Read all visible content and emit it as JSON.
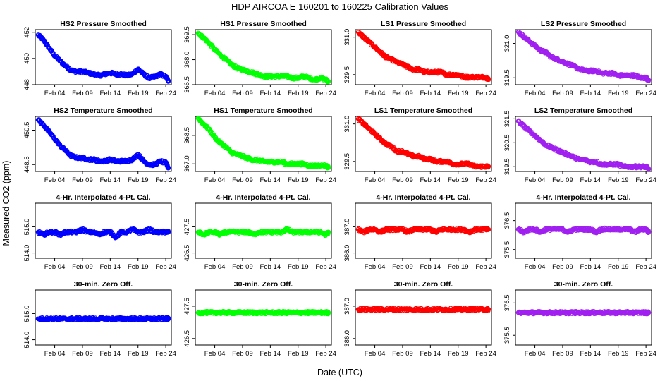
{
  "figure": {
    "title": "HDP    AIRCOA E    160201 to 160225    Calibration Values",
    "xlabel": "Date (UTC)",
    "ylabel": "Measured CO2 (ppm)"
  },
  "x_tick_labels": [
    "Feb 04",
    "Feb 09",
    "Feb 14",
    "Feb 19",
    "Feb 24"
  ],
  "x_tick_days": [
    4,
    9,
    14,
    19,
    24
  ],
  "x_range_days": [
    0.5,
    25
  ],
  "series_colors": {
    "HS2": "#0000ff",
    "HS1": "#00ff00",
    "LS1": "#ff0000",
    "LS2": "#a020f0"
  },
  "chart_data": [
    {
      "type": "scatter",
      "row": 0,
      "col": 0,
      "title": "HS2 Pressure Smoothed",
      "series": "HS2",
      "ylim": [
        448,
        452.2
      ],
      "yticks": [
        "448",
        "450",
        "452"
      ],
      "x": [
        1,
        2,
        3,
        4,
        5,
        6,
        7,
        8,
        9,
        10,
        11,
        12,
        13,
        14,
        15,
        16,
        17,
        18,
        19,
        20,
        21,
        22,
        23,
        24,
        24.5
      ],
      "y": [
        451.8,
        451.4,
        450.8,
        450.2,
        449.8,
        449.4,
        449.1,
        449.0,
        449.0,
        448.9,
        448.8,
        448.7,
        448.8,
        448.9,
        448.8,
        448.8,
        448.7,
        448.8,
        449.2,
        448.8,
        448.5,
        448.6,
        448.8,
        448.6,
        448.3
      ]
    },
    {
      "type": "scatter",
      "row": 0,
      "col": 1,
      "title": "HS1 Pressure Smoothed",
      "series": "HS1",
      "ylim": [
        366.5,
        369.8
      ],
      "yticks": [
        "366.5",
        "368.0",
        "369.5"
      ],
      "x": [
        1,
        2,
        3,
        4,
        5,
        6,
        7,
        8,
        9,
        10,
        11,
        12,
        13,
        14,
        15,
        16,
        17,
        18,
        19,
        20,
        21,
        22,
        23,
        24,
        24.5
      ],
      "y": [
        369.6,
        369.3,
        369.0,
        368.6,
        368.3,
        368.0,
        367.7,
        367.5,
        367.4,
        367.3,
        367.2,
        367.1,
        367.0,
        367.0,
        367.0,
        367.0,
        367.0,
        366.9,
        366.9,
        367.0,
        366.9,
        366.8,
        366.9,
        366.8,
        366.7
      ]
    },
    {
      "type": "scatter",
      "row": 0,
      "col": 2,
      "title": "LS1 Pressure Smoothed",
      "series": "LS1",
      "ylim": [
        329.1,
        331.3
      ],
      "yticks": [
        "329.5",
        "331.0"
      ],
      "x": [
        1,
        2,
        3,
        4,
        5,
        6,
        7,
        8,
        9,
        10,
        11,
        12,
        13,
        14,
        15,
        16,
        17,
        18,
        19,
        20,
        21,
        22,
        23,
        24,
        24.5
      ],
      "y": [
        331.2,
        331.0,
        330.8,
        330.6,
        330.4,
        330.2,
        330.1,
        330.0,
        329.9,
        329.8,
        329.7,
        329.7,
        329.6,
        329.6,
        329.6,
        329.6,
        329.5,
        329.5,
        329.5,
        329.4,
        329.4,
        329.4,
        329.4,
        329.4,
        329.3
      ]
    },
    {
      "type": "scatter",
      "row": 0,
      "col": 3,
      "title": "LS2 Pressure Smoothed",
      "series": "LS2",
      "ylim": [
        319.2,
        321.6
      ],
      "yticks": [
        "319.5",
        "321.0"
      ],
      "x": [
        1,
        2,
        3,
        4,
        5,
        6,
        7,
        8,
        9,
        10,
        11,
        12,
        13,
        14,
        15,
        16,
        17,
        18,
        19,
        20,
        21,
        22,
        23,
        24,
        24.5
      ],
      "y": [
        321.5,
        321.3,
        321.1,
        320.9,
        320.7,
        320.6,
        320.4,
        320.3,
        320.2,
        320.1,
        320.0,
        319.9,
        319.8,
        319.8,
        319.8,
        319.7,
        319.7,
        319.7,
        319.6,
        319.6,
        319.6,
        319.6,
        319.5,
        319.5,
        319.4
      ]
    },
    {
      "type": "scatter",
      "row": 1,
      "col": 0,
      "title": "HS2 Temperature Smoothed",
      "series": "HS2",
      "ylim": [
        448.1,
        451.3
      ],
      "yticks": [
        "448.5",
        "450.5"
      ],
      "x": [
        1,
        2,
        3,
        4,
        5,
        6,
        7,
        8,
        9,
        10,
        11,
        12,
        13,
        14,
        15,
        16,
        17,
        18,
        19,
        20,
        21,
        22,
        23,
        24,
        24.5
      ],
      "y": [
        451.1,
        450.8,
        450.4,
        450.0,
        449.6,
        449.3,
        449.0,
        448.9,
        448.9,
        448.8,
        448.8,
        448.7,
        448.7,
        448.8,
        448.7,
        448.7,
        448.7,
        448.8,
        449.1,
        448.7,
        448.5,
        448.5,
        448.7,
        448.6,
        448.3
      ]
    },
    {
      "type": "scatter",
      "row": 1,
      "col": 1,
      "title": "HS1 Temperature Smoothed",
      "series": "HS1",
      "ylim": [
        366.6,
        369.5
      ],
      "yticks": [
        "367.0",
        "368.5"
      ],
      "x": [
        1,
        2,
        3,
        4,
        5,
        6,
        7,
        8,
        9,
        10,
        11,
        12,
        13,
        14,
        15,
        16,
        17,
        18,
        19,
        20,
        21,
        22,
        23,
        24,
        24.5
      ],
      "y": [
        369.4,
        369.1,
        368.8,
        368.4,
        368.1,
        367.9,
        367.6,
        367.5,
        367.4,
        367.3,
        367.2,
        367.2,
        367.1,
        367.1,
        367.1,
        367.1,
        367.0,
        367.0,
        367.0,
        367.0,
        366.9,
        366.9,
        366.9,
        366.9,
        366.8
      ]
    },
    {
      "type": "scatter",
      "row": 1,
      "col": 2,
      "title": "LS1 Temperature Smoothed",
      "series": "LS1",
      "ylim": [
        329.1,
        331.3
      ],
      "yticks": [
        "329.5",
        "331.0"
      ],
      "x": [
        1,
        2,
        3,
        4,
        5,
        6,
        7,
        8,
        9,
        10,
        11,
        12,
        13,
        14,
        15,
        16,
        17,
        18,
        19,
        20,
        21,
        22,
        23,
        24,
        24.5
      ],
      "y": [
        331.2,
        331.0,
        330.8,
        330.6,
        330.4,
        330.2,
        330.1,
        329.9,
        329.9,
        329.8,
        329.7,
        329.7,
        329.6,
        329.6,
        329.5,
        329.5,
        329.5,
        329.4,
        329.4,
        329.4,
        329.4,
        329.3,
        329.3,
        329.3,
        329.3
      ]
    },
    {
      "type": "scatter",
      "row": 1,
      "col": 3,
      "title": "LS2 Temperature Smoothed",
      "series": "LS2",
      "ylim": [
        319.3,
        321.6
      ],
      "yticks": [
        "319.5",
        "320.5",
        "321.5"
      ],
      "x": [
        1,
        2,
        3,
        4,
        5,
        6,
        7,
        8,
        9,
        10,
        11,
        12,
        13,
        14,
        15,
        16,
        17,
        18,
        19,
        20,
        21,
        22,
        23,
        24,
        24.5
      ],
      "y": [
        321.4,
        321.2,
        321.0,
        320.8,
        320.6,
        320.4,
        320.3,
        320.2,
        320.1,
        320.0,
        319.9,
        319.8,
        319.8,
        319.7,
        319.7,
        319.6,
        319.6,
        319.6,
        319.6,
        319.5,
        319.5,
        319.5,
        319.5,
        319.5,
        319.4
      ]
    },
    {
      "type": "scatter",
      "row": 2,
      "col": 0,
      "title": "4-Hr. Interpolated 4-Pt. Cal.",
      "series": "HS2",
      "ylim": [
        513.8,
        515.9
      ],
      "yticks": [
        "514.0",
        "515.0"
      ],
      "x": [
        1,
        2,
        3,
        4,
        5,
        6,
        7,
        8,
        9,
        10,
        11,
        12,
        13,
        14,
        15,
        16,
        17,
        18,
        19,
        20,
        21,
        22,
        23,
        24,
        24.5
      ],
      "y": [
        514.8,
        514.7,
        514.8,
        514.8,
        514.7,
        514.8,
        514.8,
        514.8,
        514.9,
        514.8,
        514.8,
        514.7,
        514.8,
        514.8,
        514.6,
        514.8,
        514.8,
        514.9,
        514.8,
        514.8,
        514.9,
        514.8,
        514.8,
        514.8,
        514.8
      ]
    },
    {
      "type": "scatter",
      "row": 2,
      "col": 1,
      "title": "4-Hr. Interpolated 4-Pt. Cal.",
      "series": "HS1",
      "ylim": [
        426.3,
        428.4
      ],
      "yticks": [
        "426.5",
        "427.5"
      ],
      "x": [
        1,
        2,
        3,
        4,
        5,
        6,
        7,
        8,
        9,
        10,
        11,
        12,
        13,
        14,
        15,
        16,
        17,
        18,
        19,
        20,
        21,
        22,
        23,
        24,
        24.5
      ],
      "y": [
        427.3,
        427.2,
        427.3,
        427.3,
        427.2,
        427.3,
        427.3,
        427.3,
        427.3,
        427.3,
        427.2,
        427.3,
        427.3,
        427.3,
        427.3,
        427.3,
        427.4,
        427.3,
        427.3,
        427.3,
        427.3,
        427.3,
        427.3,
        427.2,
        427.3
      ]
    },
    {
      "type": "scatter",
      "row": 2,
      "col": 2,
      "title": "4-Hr. Interpolated 4-Pt. Cal.",
      "series": "LS1",
      "ylim": [
        385.8,
        387.9
      ],
      "yticks": [
        "386.0",
        "387.0"
      ],
      "x": [
        1,
        2,
        3,
        4,
        5,
        6,
        7,
        8,
        9,
        10,
        11,
        12,
        13,
        14,
        15,
        16,
        17,
        18,
        19,
        20,
        21,
        22,
        23,
        24,
        24.5
      ],
      "y": [
        386.9,
        386.8,
        386.9,
        386.9,
        386.8,
        386.9,
        386.9,
        386.9,
        386.9,
        386.8,
        386.9,
        386.9,
        386.9,
        386.9,
        386.8,
        386.9,
        386.9,
        386.9,
        386.9,
        386.9,
        386.8,
        386.9,
        386.9,
        386.9,
        386.9
      ]
    },
    {
      "type": "scatter",
      "row": 2,
      "col": 3,
      "title": "4-Hr. Interpolated 4-Pt. Cal.",
      "series": "LS2",
      "ylim": [
        375.2,
        377.1
      ],
      "yticks": [
        "375.5",
        "376.5"
      ],
      "x": [
        1,
        2,
        3,
        4,
        5,
        6,
        7,
        8,
        9,
        10,
        11,
        12,
        13,
        14,
        15,
        16,
        17,
        18,
        19,
        20,
        21,
        22,
        23,
        24,
        24.5
      ],
      "y": [
        376.2,
        376.1,
        376.2,
        376.2,
        376.1,
        376.2,
        376.2,
        376.2,
        376.2,
        376.1,
        376.2,
        376.2,
        376.2,
        376.2,
        376.1,
        376.2,
        376.2,
        376.2,
        376.2,
        376.2,
        376.2,
        376.1,
        376.2,
        376.2,
        376.1
      ]
    },
    {
      "type": "scatter",
      "row": 3,
      "col": 0,
      "title": "30-min. Zero Off.",
      "series": "HS2",
      "ylim": [
        513.8,
        515.9
      ],
      "yticks": [
        "514.0",
        "515.0"
      ],
      "x": [
        1,
        2,
        3,
        4,
        5,
        6,
        7,
        8,
        9,
        10,
        11,
        12,
        13,
        14,
        15,
        16,
        17,
        18,
        19,
        20,
        21,
        22,
        23,
        24,
        24.5
      ],
      "y": [
        514.8,
        514.8,
        514.8,
        514.8,
        514.8,
        514.8,
        514.8,
        514.8,
        514.8,
        514.8,
        514.8,
        514.8,
        514.8,
        514.8,
        514.8,
        514.8,
        514.8,
        514.8,
        514.8,
        514.8,
        514.8,
        514.8,
        514.8,
        514.8,
        514.8
      ]
    },
    {
      "type": "scatter",
      "row": 3,
      "col": 1,
      "title": "30-min. Zero Off.",
      "series": "HS1",
      "ylim": [
        426.3,
        428.0
      ],
      "yticks": [
        "426.5",
        "427.5"
      ],
      "x": [
        1,
        2,
        3,
        4,
        5,
        6,
        7,
        8,
        9,
        10,
        11,
        12,
        13,
        14,
        15,
        16,
        17,
        18,
        19,
        20,
        21,
        22,
        23,
        24,
        24.5
      ],
      "y": [
        427.3,
        427.3,
        427.3,
        427.3,
        427.3,
        427.3,
        427.3,
        427.3,
        427.3,
        427.3,
        427.3,
        427.3,
        427.3,
        427.3,
        427.3,
        427.3,
        427.3,
        427.3,
        427.3,
        427.3,
        427.3,
        427.3,
        427.3,
        427.3,
        427.3
      ]
    },
    {
      "type": "scatter",
      "row": 3,
      "col": 2,
      "title": "30-min. Zero Off.",
      "series": "LS1",
      "ylim": [
        385.8,
        387.5
      ],
      "yticks": [
        "386.0",
        "387.0"
      ],
      "x": [
        1,
        2,
        3,
        4,
        5,
        6,
        7,
        8,
        9,
        10,
        11,
        12,
        13,
        14,
        15,
        16,
        17,
        18,
        19,
        20,
        21,
        22,
        23,
        24,
        24.5
      ],
      "y": [
        386.9,
        386.9,
        386.9,
        386.9,
        386.9,
        386.9,
        386.9,
        386.9,
        386.9,
        386.9,
        386.9,
        386.9,
        386.9,
        386.9,
        386.9,
        386.9,
        386.9,
        386.9,
        386.9,
        386.9,
        386.9,
        386.9,
        386.9,
        386.9,
        386.9
      ]
    },
    {
      "type": "scatter",
      "row": 3,
      "col": 3,
      "title": "30-min. Zero Off.",
      "series": "LS2",
      "ylim": [
        375.2,
        376.9
      ],
      "yticks": [
        "375.5",
        "376.5"
      ],
      "x": [
        1,
        2,
        3,
        4,
        5,
        6,
        7,
        8,
        9,
        10,
        11,
        12,
        13,
        14,
        15,
        16,
        17,
        18,
        19,
        20,
        21,
        22,
        23,
        24,
        24.5
      ],
      "y": [
        376.2,
        376.2,
        376.2,
        376.2,
        376.2,
        376.2,
        376.2,
        376.2,
        376.2,
        376.2,
        376.2,
        376.2,
        376.2,
        376.2,
        376.2,
        376.2,
        376.2,
        376.2,
        376.2,
        376.2,
        376.2,
        376.2,
        376.2,
        376.2,
        376.2
      ]
    }
  ]
}
